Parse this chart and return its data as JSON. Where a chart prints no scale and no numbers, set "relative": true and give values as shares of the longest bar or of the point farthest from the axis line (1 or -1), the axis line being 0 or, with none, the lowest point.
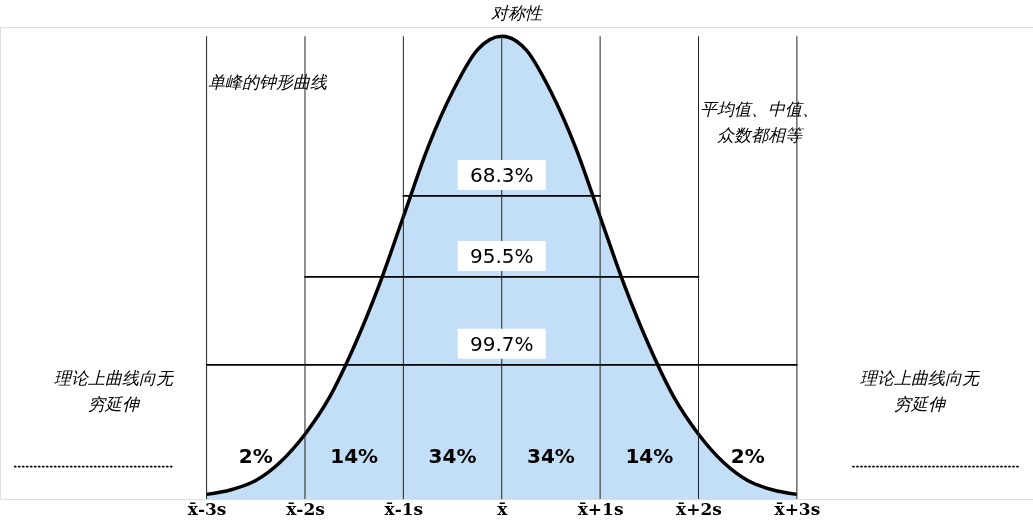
{
  "chart_data": {
    "type": "area",
    "title": "对称性",
    "relative": true,
    "x": [
      -3,
      -2.75,
      -2.5,
      -2.25,
      -2,
      -1.75,
      -1.5,
      -1.25,
      -1,
      -0.75,
      -0.5,
      -0.25,
      0,
      0.25,
      0.5,
      0.75,
      1,
      1.25,
      1.5,
      1.75,
      2,
      2.25,
      2.5,
      2.75,
      3
    ],
    "series": [
      {
        "color": "#a9d1f5",
        "values": [
          0.01,
          0.02,
          0.04,
          0.08,
          0.14,
          0.22,
          0.33,
          0.46,
          0.61,
          0.76,
          0.88,
          0.97,
          1,
          0.97,
          0.88,
          0.76,
          0.61,
          0.46,
          0.33,
          0.22,
          0.14,
          0.08,
          0.04,
          0.02,
          0.01
        ]
      },
      {
        "type": "line",
        "color": "#000000",
        "x": [
          -1,
          1
        ],
        "values": [
          0.655,
          0.655
        ]
      },
      {
        "type": "line",
        "color": "#000000",
        "x": [
          -2,
          2
        ],
        "values": [
          0.48,
          0.48
        ]
      },
      {
        "type": "line",
        "color": "#000000",
        "x": [
          -3,
          3
        ],
        "values": [
          0.29,
          0.29
        ]
      },
      {
        "type": "line",
        "color": "#000000",
        "line_style": "dotted",
        "x": [
          -3.35,
          -4.95
        ],
        "values": [
          0.07,
          0.07
        ]
      },
      {
        "type": "line",
        "color": "#000000",
        "line_style": "dotted",
        "x": [
          3.57,
          5.25
        ],
        "values": [
          0.07,
          0.07
        ]
      }
    ],
    "xlim": [
      -5.1,
      5.4
    ],
    "xticks": [
      {
        "value": -3,
        "label": "x̄-3s"
      },
      {
        "value": -2,
        "label": "x̄-2s"
      },
      {
        "value": -1,
        "label": "x̄-1s"
      },
      {
        "value": 0,
        "label": "x̄"
      },
      {
        "value": 1,
        "label": "x̄+1s"
      },
      {
        "value": 2,
        "label": "x̄+2s"
      },
      {
        "value": 3,
        "label": "x̄+3s"
      }
    ],
    "ref_lines": [
      {
        "axis": "x",
        "value": -3
      },
      {
        "axis": "x",
        "value": -2
      },
      {
        "axis": "x",
        "value": -1
      },
      {
        "axis": "x",
        "value": 0
      },
      {
        "axis": "x",
        "value": 1
      },
      {
        "axis": "x",
        "value": 2
      },
      {
        "axis": "x",
        "value": 3
      }
    ],
    "annotations": [
      "单峰的钟形曲线",
      "平均值、中值、众数都相等",
      "68.3%",
      "95.5%",
      "99.7%",
      "2%",
      "14%",
      "34%",
      "34%",
      "14%",
      "2%",
      "理论上曲线向无穷延伸",
      "理论上曲线向无穷延伸"
    ],
    "marker": "none",
    "grid": false
  }
}
